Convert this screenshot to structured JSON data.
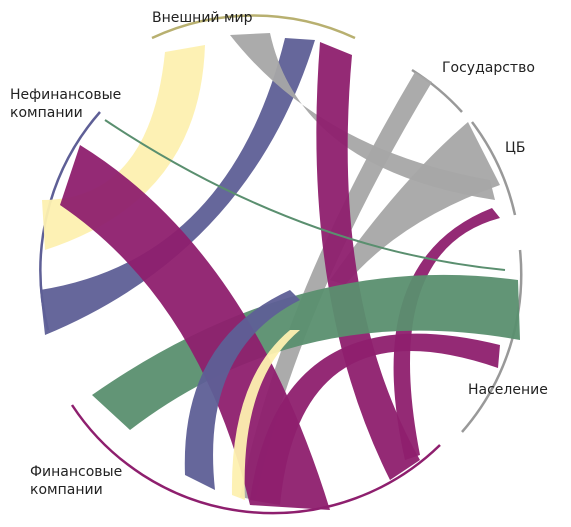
{
  "nodes": [
    {
      "label": "Внешний мир"
    },
    {
      "label": "Государство"
    },
    {
      "label": "ЦБ"
    },
    {
      "label": "Население"
    },
    {
      "label": "Финансовые компании"
    },
    {
      "label": "Нефинансовые компании"
    }
  ]
}
